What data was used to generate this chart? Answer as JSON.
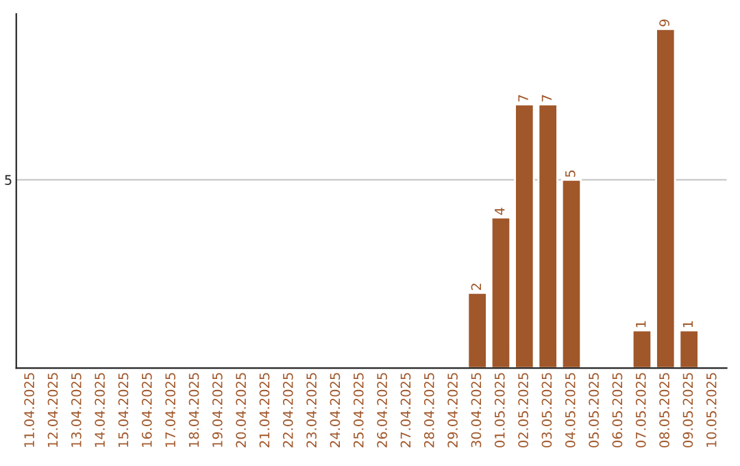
{
  "chart_data": {
    "type": "bar",
    "categories": [
      "11.04.2025",
      "12.04.2025",
      "13.04.2025",
      "14.04.2025",
      "15.04.2025",
      "16.04.2025",
      "17.04.2025",
      "18.04.2025",
      "19.04.2025",
      "20.04.2025",
      "21.04.2025",
      "22.04.2025",
      "23.04.2025",
      "24.04.2025",
      "25.04.2025",
      "26.04.2025",
      "27.04.2025",
      "28.04.2025",
      "29.04.2025",
      "30.04.2025",
      "01.05.2025",
      "02.05.2025",
      "03.05.2025",
      "04.05.2025",
      "05.05.2025",
      "06.05.2025",
      "07.05.2025",
      "08.05.2025",
      "09.05.2025",
      "10.05.2025"
    ],
    "values": [
      null,
      null,
      null,
      null,
      null,
      null,
      null,
      null,
      null,
      null,
      null,
      null,
      null,
      null,
      null,
      null,
      null,
      null,
      null,
      2,
      4,
      7,
      7,
      5,
      null,
      null,
      1,
      9,
      1,
      null
    ],
    "data_labels": true,
    "color": "#a0572a",
    "ylim": [
      0,
      9.4
    ],
    "yticks": [
      5
    ],
    "grid": "y",
    "legend": false
  }
}
